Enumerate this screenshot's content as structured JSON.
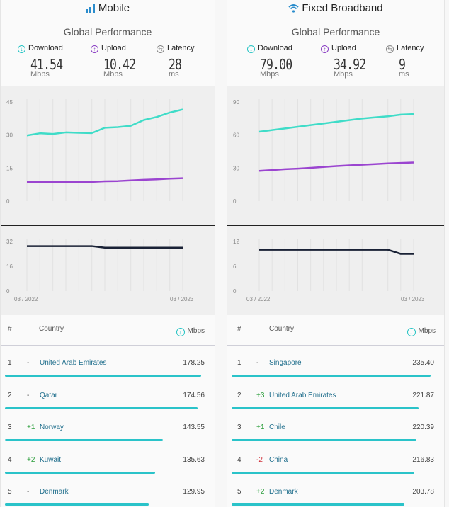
{
  "panels": [
    {
      "id": "mobile",
      "title": "Mobile",
      "subtitle": "Global Performance",
      "metrics": {
        "download": {
          "label": "Download",
          "value": "41.54",
          "unit": "Mbps"
        },
        "upload": {
          "label": "Upload",
          "value": "10.42",
          "unit": "Mbps"
        },
        "latency": {
          "label": "Latency",
          "value": "28",
          "unit": "ms"
        }
      },
      "table": {
        "col_rank": "#",
        "col_country": "Country",
        "col_value": "Mbps",
        "rows": [
          {
            "rank": "1",
            "change": "-",
            "country": "United Arab Emirates",
            "value": "178.25",
            "fill": 0.97
          },
          {
            "rank": "2",
            "change": "-",
            "country": "Qatar",
            "value": "174.56",
            "fill": 0.95
          },
          {
            "rank": "3",
            "change": "+1",
            "country": "Norway",
            "value": "143.55",
            "fill": 0.78
          },
          {
            "rank": "4",
            "change": "+2",
            "country": "Kuwait",
            "value": "135.63",
            "fill": 0.74
          },
          {
            "rank": "5",
            "change": "-",
            "country": "Denmark",
            "value": "129.95",
            "fill": 0.71
          }
        ]
      }
    },
    {
      "id": "fixed",
      "title": "Fixed Broadband",
      "subtitle": "Global Performance",
      "metrics": {
        "download": {
          "label": "Download",
          "value": "79.00",
          "unit": "Mbps"
        },
        "upload": {
          "label": "Upload",
          "value": "34.92",
          "unit": "Mbps"
        },
        "latency": {
          "label": "Latency",
          "value": "9",
          "unit": "ms"
        }
      },
      "table": {
        "col_rank": "#",
        "col_country": "Country",
        "col_value": "Mbps",
        "rows": [
          {
            "rank": "1",
            "change": "-",
            "country": "Singapore",
            "value": "235.40",
            "fill": 0.97
          },
          {
            "rank": "2",
            "change": "+3",
            "country": "United Arab Emirates",
            "value": "221.87",
            "fill": 0.91
          },
          {
            "rank": "3",
            "change": "+1",
            "country": "Chile",
            "value": "220.39",
            "fill": 0.9
          },
          {
            "rank": "4",
            "change": "-2",
            "country": "China",
            "value": "216.83",
            "fill": 0.89
          },
          {
            "rank": "5",
            "change": "+2",
            "country": "Denmark",
            "value": "203.78",
            "fill": 0.84
          }
        ]
      }
    }
  ],
  "colors": {
    "download": "#3fdcc8",
    "upload": "#9b45d0",
    "latency": "#1a2236",
    "bar": "#2ac3c9",
    "upload_icon": "#8b3fc4",
    "download_icon": "#26c4c4",
    "latency_icon": "#888888"
  },
  "chart_data": [
    {
      "type": "line",
      "panel": "Mobile speed",
      "x": [
        "03 / 2022",
        "",
        "",
        "",
        "",
        "",
        "",
        "",
        "",
        "",
        "",
        "",
        "03 / 2023"
      ],
      "yticks": [
        0,
        15,
        30,
        45
      ],
      "ylim": [
        0,
        45
      ],
      "series": [
        {
          "key": "download",
          "values": [
            29.8,
            30.8,
            30.5,
            31.2,
            31.0,
            30.9,
            33.3,
            33.6,
            34.2,
            36.8,
            38.2,
            40.2,
            41.6
          ]
        },
        {
          "key": "upload",
          "values": [
            8.6,
            8.7,
            8.6,
            8.7,
            8.6,
            8.7,
            9.0,
            9.1,
            9.4,
            9.7,
            9.9,
            10.2,
            10.4
          ]
        }
      ]
    },
    {
      "type": "line",
      "panel": "Mobile latency",
      "x": [
        "03 / 2022",
        "",
        "",
        "",
        "",
        "",
        "",
        "",
        "",
        "",
        "",
        "",
        "03 / 2023"
      ],
      "yticks": [
        0,
        16,
        32
      ],
      "ylim": [
        0,
        32
      ],
      "series": [
        {
          "key": "latency",
          "values": [
            29,
            29,
            29,
            29,
            29,
            29,
            28,
            28,
            28,
            28,
            28,
            28,
            28
          ]
        }
      ]
    },
    {
      "type": "line",
      "panel": "Fixed speed",
      "x": [
        "03 / 2022",
        "",
        "",
        "",
        "",
        "",
        "",
        "",
        "",
        "",
        "",
        "",
        "03 / 2023"
      ],
      "yticks": [
        0,
        30,
        60,
        90
      ],
      "ylim": [
        0,
        90
      ],
      "series": [
        {
          "key": "download",
          "values": [
            63,
            64.5,
            66,
            67.5,
            69,
            70.5,
            72,
            73.5,
            75,
            76,
            77,
            78.5,
            79
          ]
        },
        {
          "key": "upload",
          "values": [
            27.5,
            28.2,
            29,
            29.5,
            30.2,
            31,
            31.8,
            32.5,
            33,
            33.6,
            34.2,
            34.6,
            35
          ]
        }
      ]
    },
    {
      "type": "line",
      "panel": "Fixed latency",
      "x": [
        "03 / 2022",
        "",
        "",
        "",
        "",
        "",
        "",
        "",
        "",
        "",
        "",
        "",
        "03 / 2023"
      ],
      "yticks": [
        0,
        6,
        12
      ],
      "ylim": [
        0,
        12
      ],
      "series": [
        {
          "key": "latency",
          "values": [
            10,
            10,
            10,
            10,
            10,
            10,
            10,
            10,
            10,
            10,
            10,
            9,
            9
          ]
        }
      ]
    }
  ]
}
